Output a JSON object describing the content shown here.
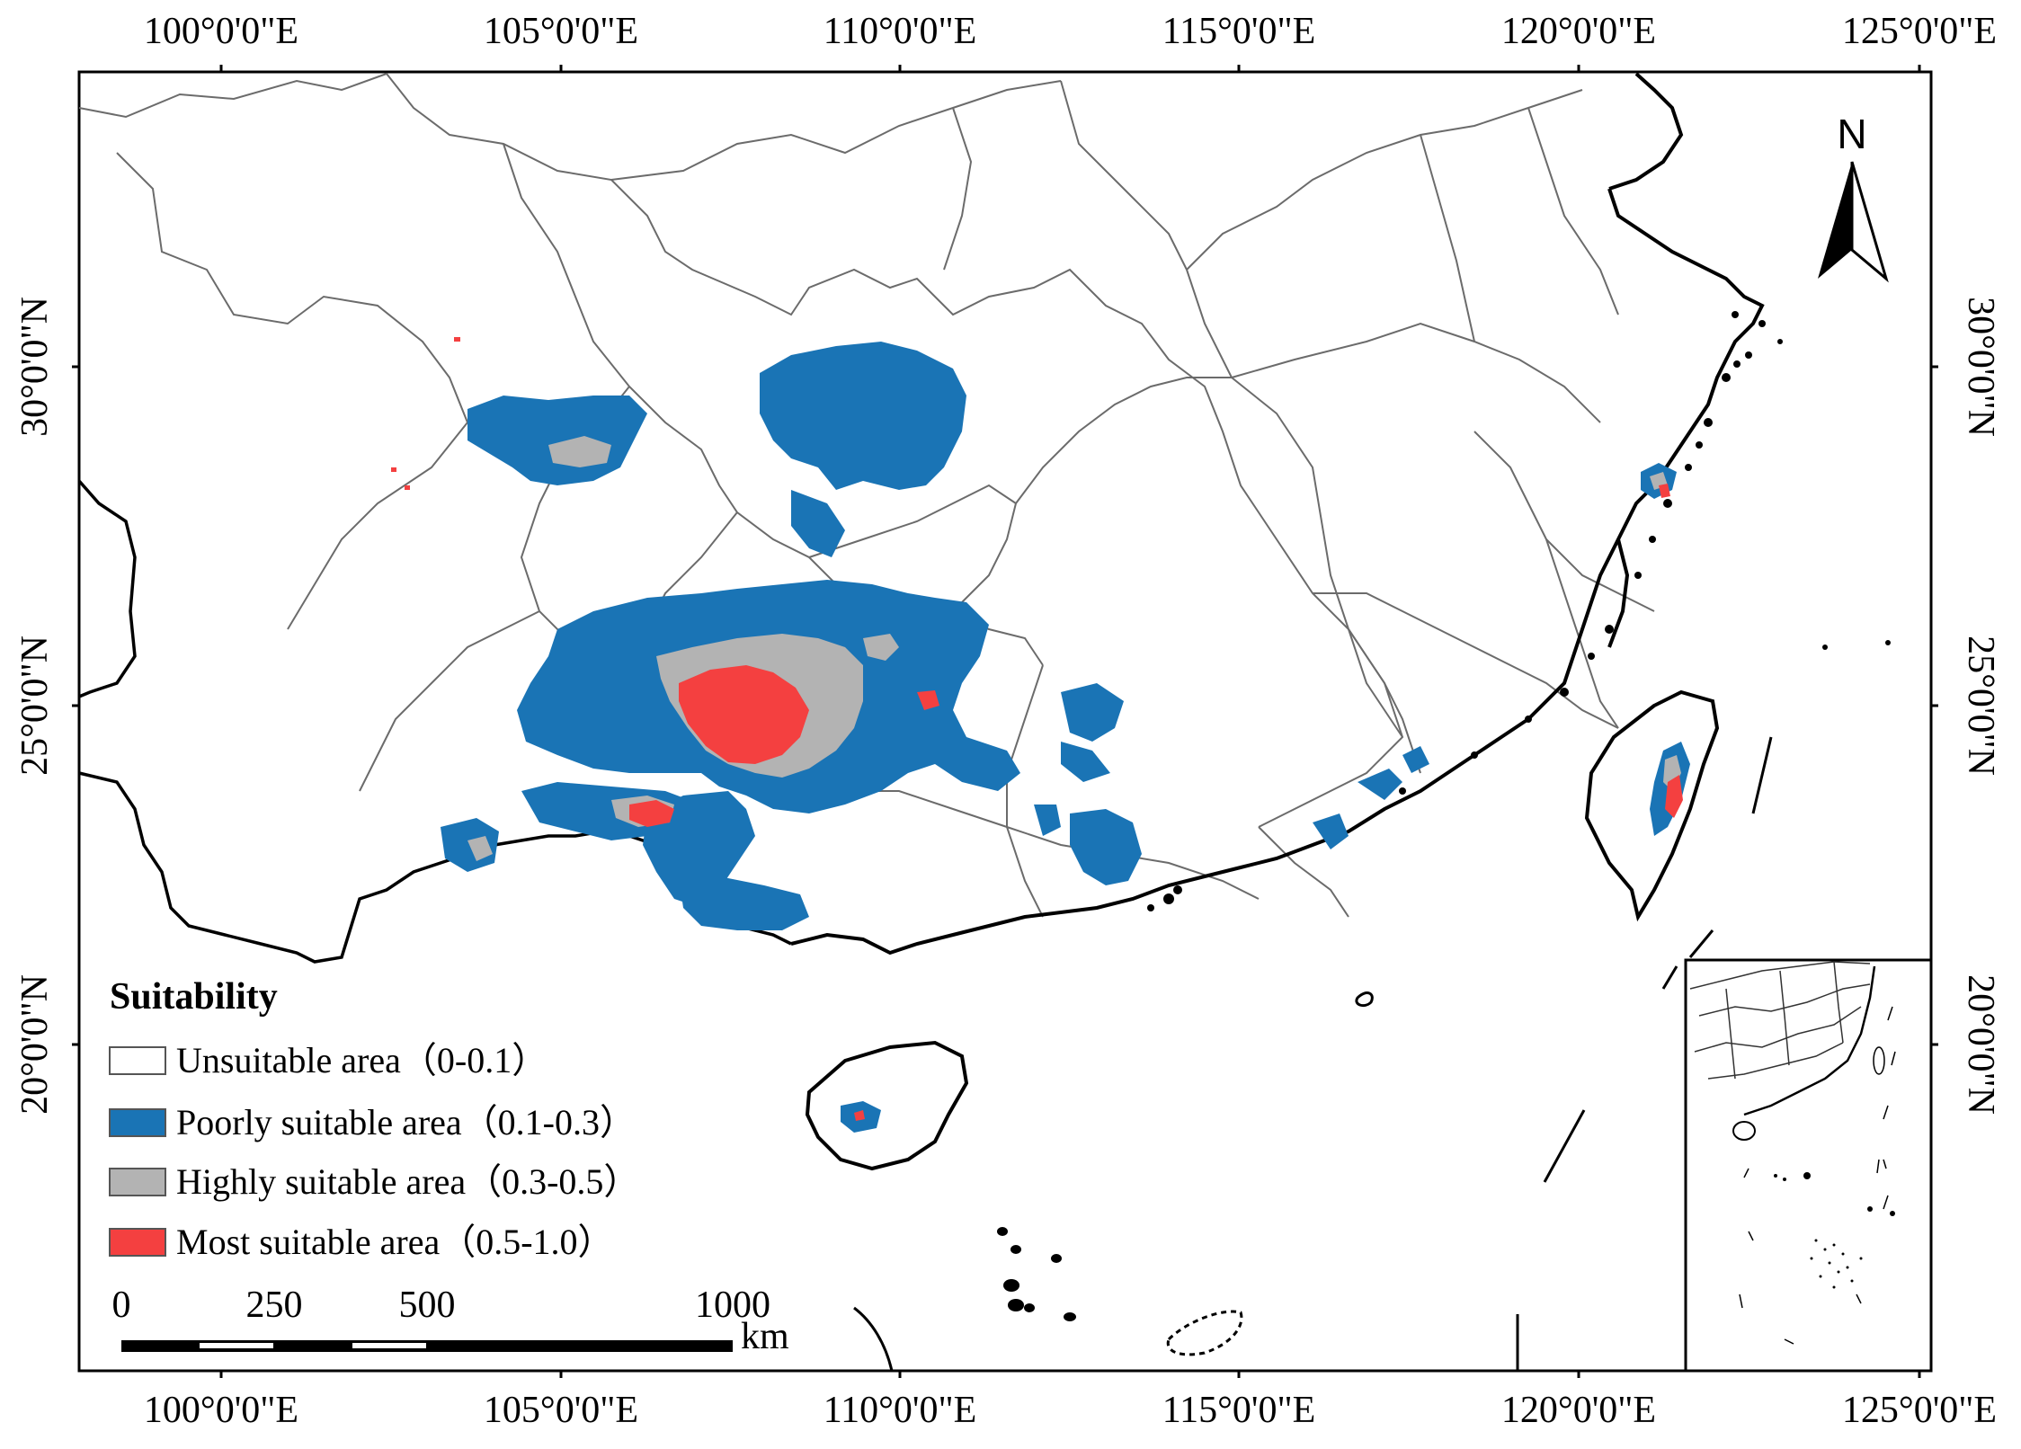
{
  "map": {
    "axes": {
      "top_ticks": [
        "100°0'0\"E",
        "105°0'0\"E",
        "110°0'0\"E",
        "115°0'0\"E",
        "120°0'0\"E",
        "125°0'0\"E"
      ],
      "bottom_ticks": [
        "100°0'0\"E",
        "105°0'0\"E",
        "110°0'0\"E",
        "115°0'0\"E",
        "120°0'0\"E",
        "125°0'0\"E"
      ],
      "left_ticks": [
        "30°0'0\"N",
        "25°0'0\"N",
        "20°0'0\"N"
      ],
      "right_ticks": [
        "30°0'0\"N",
        "25°0'0\"N",
        "20°0'0\"N"
      ]
    },
    "legend": {
      "title": "Suitability",
      "items": [
        {
          "label": "Unsuitable area（0-0.1）",
          "color": "#ffffff"
        },
        {
          "label": "Poorly suitable area（0.1-0.3）",
          "color": "#1a74b5"
        },
        {
          "label": "Highly suitable area（0.3-0.5）",
          "color": "#b3b3b3"
        },
        {
          "label": "Most suitable area（0.5-1.0）",
          "color": "#f44040"
        }
      ]
    },
    "scale_bar": {
      "labels": [
        "0",
        "250",
        "500",
        "1000"
      ],
      "unit": "km"
    },
    "north_arrow": {
      "label": "N"
    },
    "colors": {
      "frame": "#000000",
      "province_boundary": "#666666",
      "coastline": "#000000",
      "poorly": "#1a74b5",
      "highly": "#b3b3b3",
      "most": "#f44040"
    }
  }
}
